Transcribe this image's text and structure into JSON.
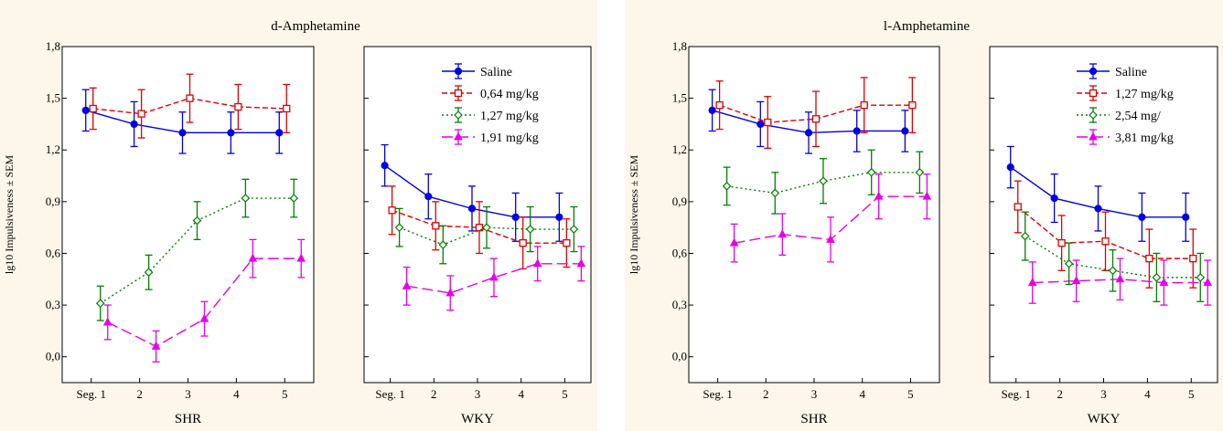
{
  "chart_data": [
    {
      "type": "line",
      "title": "d-Amphetamine",
      "ylabel": "lg10 Impulsiveness ± SEM",
      "ylim": [
        -0.15,
        1.8
      ],
      "yticks": [
        "1,8",
        "1,5",
        "1,2",
        "0,9",
        "0,6",
        "0,3",
        "0,0"
      ],
      "ytick_values": [
        1.8,
        1.5,
        1.2,
        0.9,
        0.6,
        0.3,
        0.0
      ],
      "categories": [
        "Seg. 1",
        "2",
        "3",
        "4",
        "5"
      ],
      "legend_position": "top-right (in WKY panel)",
      "series": [
        {
          "name": "Saline",
          "color": "#0000e6",
          "dash": "solid",
          "marker": "circle-filled"
        },
        {
          "name": "0,64 mg/kg",
          "color": "#e00000",
          "dash": "dashed",
          "marker": "square-open"
        },
        {
          "name": "1,27 mg/kg",
          "color": "#008000",
          "dash": "dotted",
          "marker": "diamond-open"
        },
        {
          "name": "1,91 mg/kg",
          "color": "#e600e6",
          "dash": "longdash",
          "marker": "triangle-filled"
        }
      ],
      "panels": [
        {
          "group": "SHR",
          "values": [
            [
              1.43,
              1.35,
              1.3,
              1.3,
              1.3
            ],
            [
              1.44,
              1.41,
              1.5,
              1.45,
              1.44
            ],
            [
              0.31,
              0.49,
              0.79,
              0.92,
              0.92
            ],
            [
              0.2,
              0.06,
              0.22,
              0.57,
              0.57
            ]
          ],
          "errors": [
            [
              0.12,
              0.13,
              0.12,
              0.12,
              0.12
            ],
            [
              0.12,
              0.14,
              0.14,
              0.13,
              0.14
            ],
            [
              0.1,
              0.1,
              0.11,
              0.11,
              0.11
            ],
            [
              0.1,
              0.09,
              0.1,
              0.11,
              0.11
            ]
          ]
        },
        {
          "group": "WKY",
          "values": [
            [
              1.11,
              0.93,
              0.86,
              0.81,
              0.81
            ],
            [
              0.85,
              0.76,
              0.75,
              0.66,
              0.66
            ],
            [
              0.75,
              0.65,
              0.75,
              0.74,
              0.74
            ],
            [
              0.41,
              0.37,
              0.46,
              0.54,
              0.54
            ]
          ],
          "errors": [
            [
              0.12,
              0.13,
              0.13,
              0.14,
              0.14
            ],
            [
              0.14,
              0.14,
              0.15,
              0.15,
              0.14
            ],
            [
              0.11,
              0.11,
              0.12,
              0.13,
              0.13
            ],
            [
              0.11,
              0.1,
              0.11,
              0.1,
              0.1
            ]
          ]
        }
      ]
    },
    {
      "type": "line",
      "title": "l-Amphetamine",
      "ylabel": "lg10 Impulsiveness ± SEM",
      "ylim": [
        -0.15,
        1.8
      ],
      "yticks": [
        "1,8",
        "1,5",
        "1,2",
        "0,9",
        "0,6",
        "0,3",
        "0,0"
      ],
      "ytick_values": [
        1.8,
        1.5,
        1.2,
        0.9,
        0.6,
        0.3,
        0.0
      ],
      "categories": [
        "Seg. 1",
        "2",
        "3",
        "4",
        "5"
      ],
      "legend_position": "top-right (in WKY panel)",
      "series": [
        {
          "name": "Saline",
          "color": "#0000e6",
          "dash": "solid",
          "marker": "circle-filled"
        },
        {
          "name": "1,27 mg/kg",
          "color": "#e00000",
          "dash": "dashed",
          "marker": "square-open"
        },
        {
          "name": "2,54 mg/",
          "color": "#008000",
          "dash": "dotted",
          "marker": "diamond-open"
        },
        {
          "name": "3,81 mg/kg",
          "color": "#e600e6",
          "dash": "longdash",
          "marker": "triangle-filled"
        }
      ],
      "panels": [
        {
          "group": "SHR",
          "values": [
            [
              1.43,
              1.35,
              1.3,
              1.31,
              1.31
            ],
            [
              1.46,
              1.36,
              1.38,
              1.46,
              1.46
            ],
            [
              0.99,
              0.95,
              1.02,
              1.07,
              1.07
            ],
            [
              0.66,
              0.71,
              0.68,
              0.93,
              0.93
            ]
          ],
          "errors": [
            [
              0.12,
              0.13,
              0.12,
              0.12,
              0.12
            ],
            [
              0.14,
              0.15,
              0.16,
              0.16,
              0.16
            ],
            [
              0.11,
              0.12,
              0.13,
              0.13,
              0.12
            ],
            [
              0.11,
              0.12,
              0.13,
              0.13,
              0.13
            ]
          ]
        },
        {
          "group": "WKY",
          "values": [
            [
              1.1,
              0.92,
              0.86,
              0.81,
              0.81
            ],
            [
              0.87,
              0.66,
              0.67,
              0.57,
              0.57
            ],
            [
              0.7,
              0.54,
              0.5,
              0.46,
              0.46
            ],
            [
              0.43,
              0.44,
              0.45,
              0.43,
              0.43
            ]
          ],
          "errors": [
            [
              0.12,
              0.14,
              0.13,
              0.14,
              0.14
            ],
            [
              0.15,
              0.16,
              0.17,
              0.17,
              0.17
            ],
            [
              0.14,
              0.12,
              0.12,
              0.14,
              0.14
            ],
            [
              0.12,
              0.12,
              0.12,
              0.13,
              0.13
            ]
          ]
        }
      ]
    }
  ]
}
